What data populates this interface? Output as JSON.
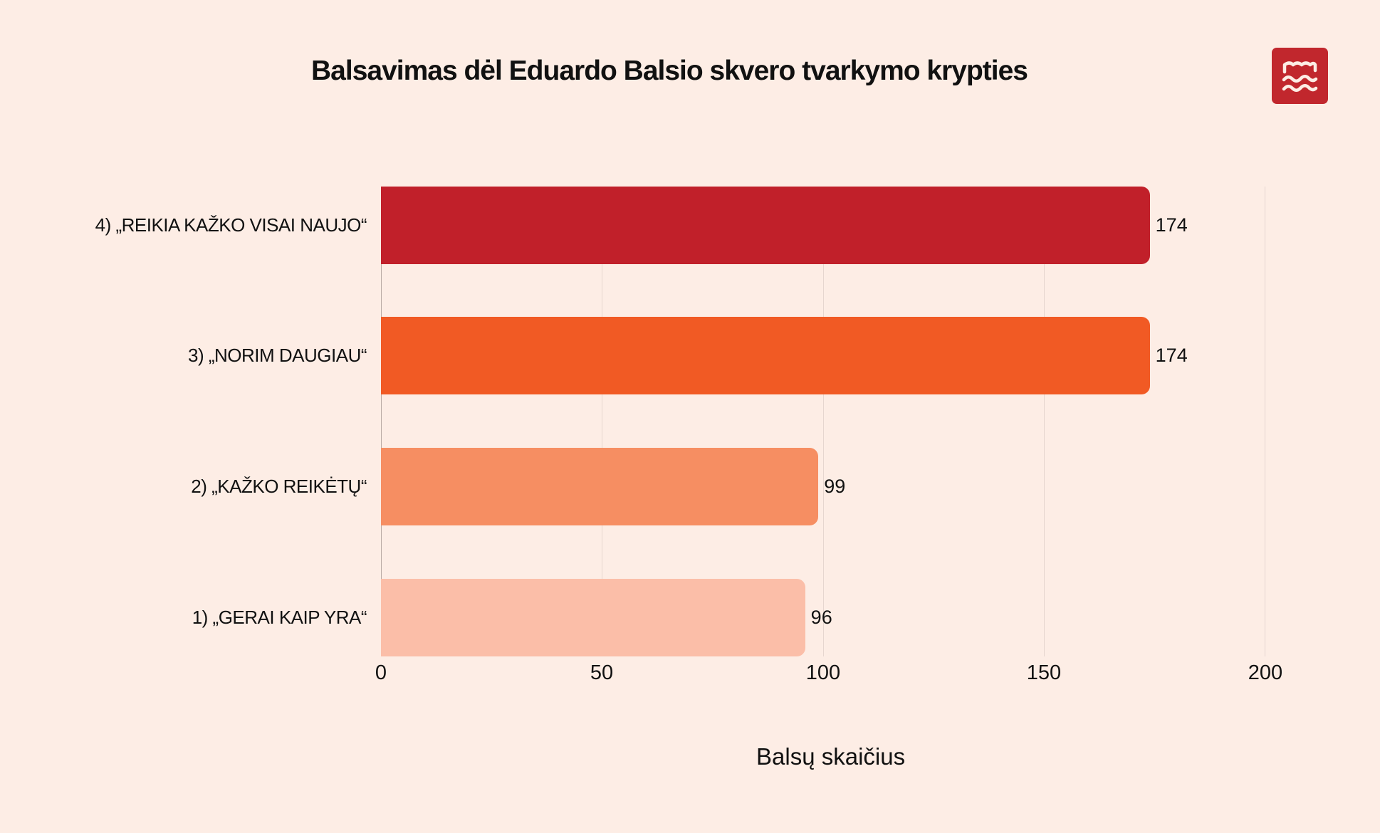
{
  "title": "Balsavimas dėl Eduardo Balsio skvero tvarkymo krypties",
  "logo": {
    "icon": "waves-logo-icon",
    "color": "#C1272D"
  },
  "chart_data": {
    "type": "bar",
    "orientation": "horizontal",
    "title": "Balsavimas dėl Eduardo Balsio skvero tvarkymo krypties",
    "xlabel": "Balsų skaičius",
    "ylabel": "",
    "xlim": [
      0,
      200
    ],
    "xticks": [
      "0",
      "50",
      "100",
      "150",
      "200"
    ],
    "grid": "vertical",
    "categories": [
      "4) „REIKIA KAŽKO VISAI NAUJO“",
      "3) „NORIM DAUGIAU“",
      "2) „KAŽKO REIKĖTŲ“",
      "1) „GERAI KAIP YRA“"
    ],
    "values": [
      174,
      174,
      99,
      96
    ],
    "value_labels": [
      "174",
      "174",
      "99",
      "96"
    ],
    "colors": [
      "#C1202A",
      "#F15A24",
      "#F68E62",
      "#FBBEA8"
    ]
  }
}
